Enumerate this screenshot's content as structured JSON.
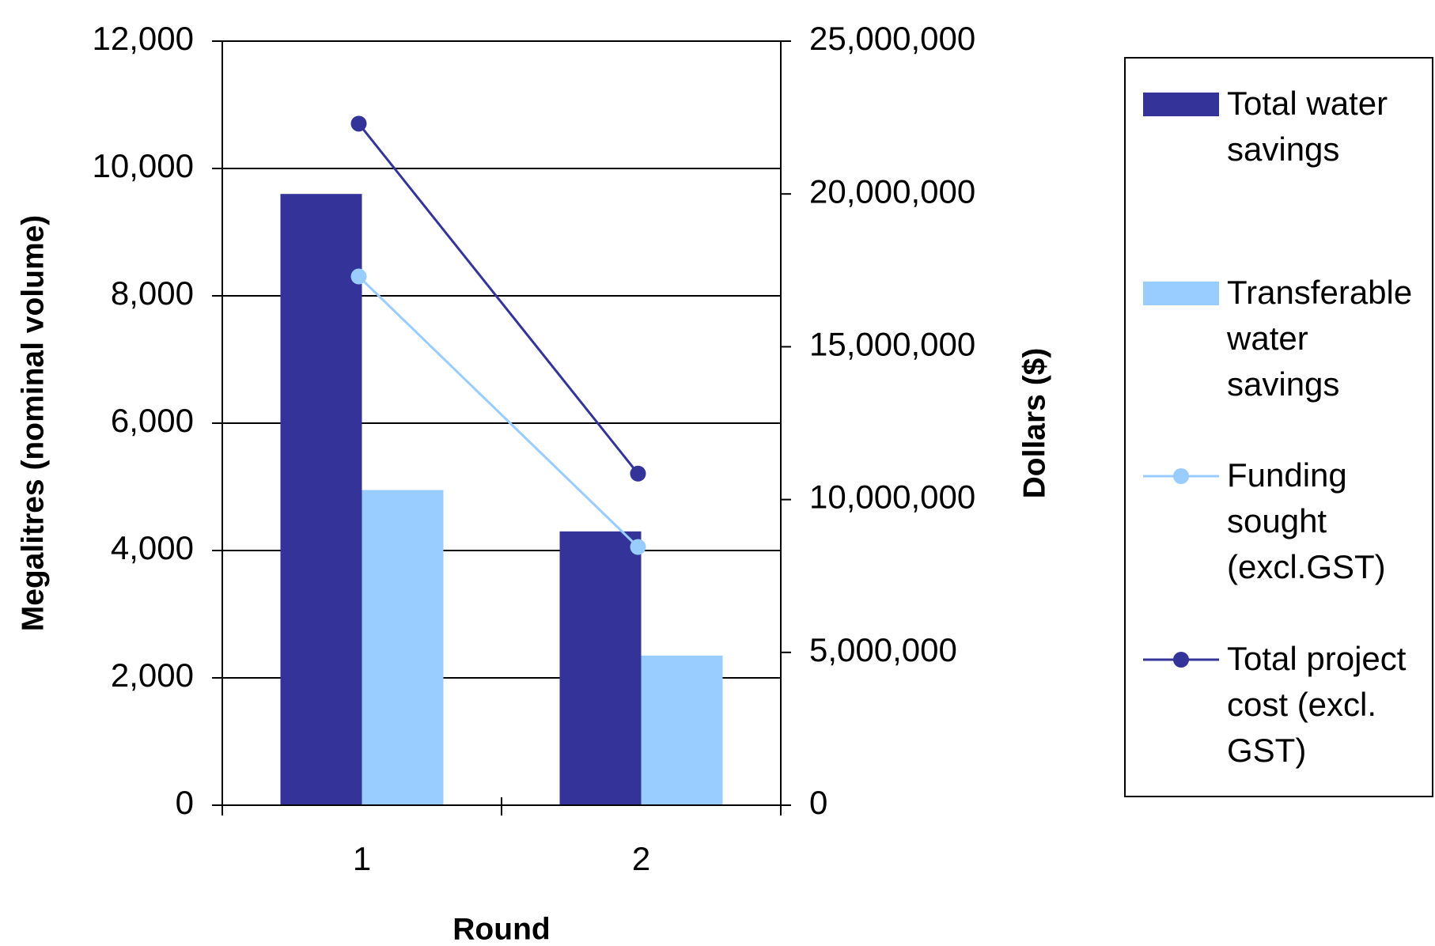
{
  "chart_data": {
    "type": "bar",
    "categories": [
      "1",
      "2"
    ],
    "x_label": "Round",
    "y_label": "Megalitres (nominal volume)",
    "y2_label": "Dollars ($)",
    "ylim": [
      0,
      12000
    ],
    "yticks": [
      0,
      {
        "value": 2000,
        "label": "2,000"
      },
      {
        "value": 4000,
        "label": "4,000"
      },
      {
        "value": 6000,
        "label": "6,000"
      },
      {
        "value": 8000,
        "label": "8,000"
      },
      {
        "value": 10000,
        "label": "10,000"
      },
      {
        "value": 12000,
        "label": "12,000"
      }
    ],
    "y2lim": [
      0,
      25000000
    ],
    "y2ticks": [
      0,
      {
        "value": 5000000,
        "label": "5,000,000"
      },
      {
        "value": 10000000,
        "label": "10,000,000"
      },
      {
        "value": 15000000,
        "label": "15,000,000"
      },
      {
        "value": 20000000,
        "label": "20,000,000"
      },
      {
        "value": 25000000,
        "label": "25,000,000"
      }
    ],
    "grid": true,
    "legend": "right",
    "series": [
      {
        "name": "Total water savings",
        "type": "bar",
        "color": "#333399",
        "values": [
          9600,
          4300
        ]
      },
      {
        "name": "Transferable water savings",
        "type": "bar",
        "color": "#99ccff",
        "values": [
          4950,
          2350
        ]
      },
      {
        "name": "Funding sought (excl.GST)",
        "type": "line",
        "axis": "y2",
        "color": "#99ccff",
        "values": [
          17300000,
          8450000
        ]
      },
      {
        "name": "Total project cost (excl. GST)",
        "type": "line",
        "axis": "y2",
        "color": "#333399",
        "values": [
          22300000,
          10850000
        ]
      }
    ]
  }
}
